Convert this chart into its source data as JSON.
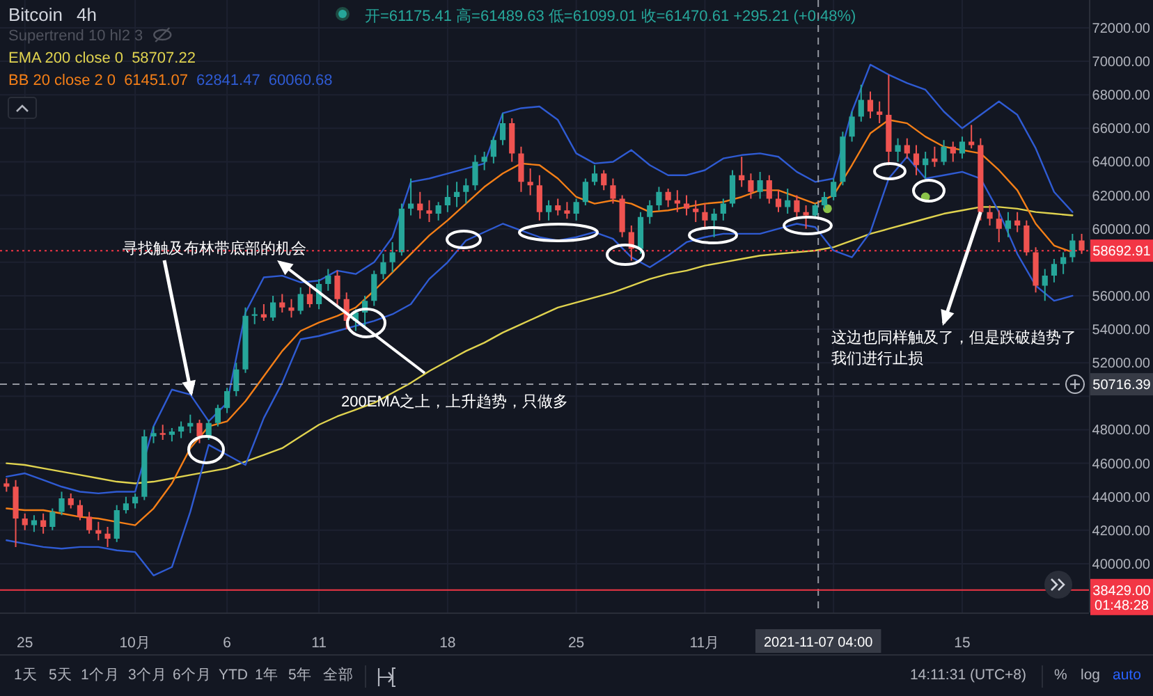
{
  "chart_data": {
    "type": "candlestick",
    "title": "Bitcoin",
    "subtitle": "4h",
    "x": [
      "2021-09-24T00:00",
      "2021-09-24T12:00",
      "2021-09-25T00:00",
      "2021-09-25T12:00",
      "2021-09-26T00:00",
      "2021-09-26T12:00",
      "2021-09-27T00:00",
      "2021-09-27T12:00",
      "2021-09-28T00:00",
      "2021-09-28T12:00",
      "2021-09-29T00:00",
      "2021-09-29T12:00",
      "2021-09-30T00:00",
      "2021-09-30T12:00",
      "2021-10-01T00:00",
      "2021-10-01T12:00",
      "2021-10-02T00:00",
      "2021-10-02T12:00",
      "2021-10-03T00:00",
      "2021-10-03T12:00",
      "2021-10-04T00:00",
      "2021-10-04T12:00",
      "2021-10-05T00:00",
      "2021-10-05T12:00",
      "2021-10-06T00:00",
      "2021-10-06T12:00",
      "2021-10-07T00:00",
      "2021-10-07T12:00",
      "2021-10-08T00:00",
      "2021-10-08T12:00",
      "2021-10-09T00:00",
      "2021-10-09T12:00",
      "2021-10-10T00:00",
      "2021-10-10T12:00",
      "2021-10-11T00:00",
      "2021-10-11T12:00",
      "2021-10-12T00:00",
      "2021-10-12T12:00",
      "2021-10-13T00:00",
      "2021-10-13T12:00",
      "2021-10-14T00:00",
      "2021-10-14T12:00",
      "2021-10-15T00:00",
      "2021-10-15T12:00",
      "2021-10-16T00:00",
      "2021-10-16T12:00",
      "2021-10-17T00:00",
      "2021-10-17T12:00",
      "2021-10-18T00:00",
      "2021-10-18T12:00",
      "2021-10-19T00:00",
      "2021-10-19T12:00",
      "2021-10-20T00:00",
      "2021-10-20T12:00",
      "2021-10-21T00:00",
      "2021-10-21T12:00",
      "2021-10-22T00:00",
      "2021-10-22T12:00",
      "2021-10-23T00:00",
      "2021-10-23T12:00",
      "2021-10-24T00:00",
      "2021-10-24T12:00",
      "2021-10-25T00:00",
      "2021-10-25T12:00",
      "2021-10-26T00:00",
      "2021-10-26T12:00",
      "2021-10-27T00:00",
      "2021-10-27T12:00",
      "2021-10-28T00:00",
      "2021-10-28T12:00",
      "2021-10-29T00:00",
      "2021-10-29T12:00",
      "2021-10-30T00:00",
      "2021-10-30T12:00",
      "2021-10-31T00:00",
      "2021-10-31T12:00",
      "2021-11-01T00:00",
      "2021-11-01T12:00",
      "2021-11-02T00:00",
      "2021-11-02T12:00",
      "2021-11-03T00:00",
      "2021-11-03T12:00",
      "2021-11-04T00:00",
      "2021-11-04T12:00",
      "2021-11-05T00:00",
      "2021-11-05T12:00",
      "2021-11-06T00:00",
      "2021-11-06T12:00",
      "2021-11-07T00:00",
      "2021-11-07T12:00",
      "2021-11-08T00:00",
      "2021-11-08T12:00",
      "2021-11-09T00:00",
      "2021-11-09T12:00",
      "2021-11-10T00:00",
      "2021-11-10T12:00",
      "2021-11-11T00:00",
      "2021-11-11T12:00",
      "2021-11-12T00:00",
      "2021-11-12T12:00",
      "2021-11-13T00:00",
      "2021-11-13T12:00",
      "2021-11-14T00:00",
      "2021-11-14T12:00",
      "2021-11-15T00:00",
      "2021-11-15T12:00",
      "2021-11-16T00:00",
      "2021-11-16T12:00",
      "2021-11-17T00:00",
      "2021-11-17T12:00",
      "2021-11-18T00:00",
      "2021-11-18T12:00",
      "2021-11-19T00:00",
      "2021-11-19T12:00",
      "2021-11-20T00:00",
      "2021-11-20T12:00",
      "2021-11-21T00:00",
      "2021-11-21T12:00"
    ],
    "ohlc": [
      [
        44800,
        45100,
        44300,
        44600
      ],
      [
        44600,
        45000,
        41000,
        42700
      ],
      [
        42700,
        43000,
        42000,
        42300
      ],
      [
        42300,
        42900,
        41900,
        42600
      ],
      [
        42600,
        43000,
        41800,
        42200
      ],
      [
        42200,
        43300,
        42000,
        43100
      ],
      [
        43100,
        44300,
        42900,
        43900
      ],
      [
        43900,
        44200,
        43300,
        43500
      ],
      [
        43500,
        43800,
        42600,
        42800
      ],
      [
        42800,
        43100,
        41800,
        42000
      ],
      [
        42000,
        42500,
        41400,
        41800
      ],
      [
        41800,
        42200,
        41000,
        41500
      ],
      [
        41500,
        43500,
        41300,
        43200
      ],
      [
        43200,
        44000,
        43000,
        43600
      ],
      [
        43600,
        44200,
        43300,
        44000
      ],
      [
        44000,
        48000,
        43800,
        47600
      ],
      [
        47600,
        48200,
        47200,
        47800
      ],
      [
        47800,
        48300,
        47400,
        47700
      ],
      [
        47700,
        48100,
        47300,
        47900
      ],
      [
        47900,
        48500,
        47500,
        48200
      ],
      [
        48200,
        48900,
        47800,
        48400
      ],
      [
        48400,
        48600,
        47200,
        47600
      ],
      [
        47600,
        48600,
        47400,
        48400
      ],
      [
        48400,
        49500,
        48200,
        49300
      ],
      [
        49300,
        50500,
        49000,
        50300
      ],
      [
        50300,
        52000,
        50000,
        51600
      ],
      [
        51600,
        55300,
        51400,
        54800
      ],
      [
        54800,
        55300,
        54300,
        54900
      ],
      [
        54900,
        55500,
        54500,
        54700
      ],
      [
        54700,
        56000,
        54500,
        55600
      ],
      [
        55600,
        56100,
        55000,
        55300
      ],
      [
        55300,
        55800,
        54700,
        55100
      ],
      [
        55100,
        56500,
        54900,
        56100
      ],
      [
        56100,
        56600,
        55300,
        55500
      ],
      [
        55500,
        57000,
        55200,
        56700
      ],
      [
        56700,
        57600,
        56300,
        57200
      ],
      [
        57200,
        57500,
        55400,
        55800
      ],
      [
        55800,
        56200,
        54000,
        54500
      ],
      [
        54500,
        55200,
        53900,
        55000
      ],
      [
        55000,
        56000,
        54200,
        55700
      ],
      [
        55700,
        57500,
        55400,
        57300
      ],
      [
        57300,
        58500,
        57000,
        58000
      ],
      [
        58000,
        59200,
        57400,
        58600
      ],
      [
        58600,
        61500,
        58400,
        61200
      ],
      [
        61200,
        63000,
        60800,
        61500
      ],
      [
        61500,
        62200,
        60600,
        61100
      ],
      [
        61100,
        61700,
        60400,
        60900
      ],
      [
        60900,
        61600,
        60500,
        61400
      ],
      [
        61400,
        62600,
        61000,
        61900
      ],
      [
        61900,
        62800,
        61300,
        62200
      ],
      [
        62200,
        63000,
        61500,
        62600
      ],
      [
        62600,
        64400,
        62300,
        64000
      ],
      [
        64000,
        64600,
        63500,
        64300
      ],
      [
        64300,
        65500,
        63900,
        65300
      ],
      [
        65300,
        66900,
        65000,
        66300
      ],
      [
        66300,
        66600,
        64000,
        64500
      ],
      [
        64500,
        64900,
        62200,
        62800
      ],
      [
        62800,
        63600,
        62000,
        62600
      ],
      [
        62600,
        63200,
        60500,
        61000
      ],
      [
        61000,
        61700,
        60500,
        61400
      ],
      [
        61400,
        61800,
        60800,
        61100
      ],
      [
        61100,
        61600,
        60600,
        60900
      ],
      [
        60900,
        61800,
        60500,
        61600
      ],
      [
        61600,
        63000,
        61400,
        62800
      ],
      [
        62800,
        63800,
        62600,
        63300
      ],
      [
        63300,
        63500,
        62300,
        62600
      ],
      [
        62600,
        63000,
        61500,
        61800
      ],
      [
        61800,
        62000,
        59500,
        59800
      ],
      [
        59800,
        60200,
        58100,
        58800
      ],
      [
        58800,
        61000,
        58500,
        60700
      ],
      [
        60700,
        61700,
        60300,
        61400
      ],
      [
        61400,
        62500,
        61100,
        62200
      ],
      [
        62200,
        62400,
        61300,
        61700
      ],
      [
        61700,
        62300,
        61000,
        61500
      ],
      [
        61500,
        62000,
        60800,
        61200
      ],
      [
        61200,
        61700,
        60400,
        61000
      ],
      [
        61000,
        61500,
        60000,
        60500
      ],
      [
        60500,
        61200,
        59500,
        60900
      ],
      [
        60900,
        61800,
        60500,
        61500
      ],
      [
        61500,
        63500,
        61300,
        63200
      ],
      [
        63200,
        64300,
        62500,
        62900
      ],
      [
        62900,
        63300,
        61800,
        62200
      ],
      [
        62200,
        63400,
        61800,
        62900
      ],
      [
        62900,
        63200,
        61500,
        61800
      ],
      [
        61800,
        62300,
        61000,
        61300
      ],
      [
        61300,
        62400,
        60900,
        61700
      ],
      [
        61700,
        62000,
        60600,
        61000
      ],
      [
        61000,
        61400,
        60000,
        60800
      ],
      [
        60800,
        61500,
        60600,
        61400
      ],
      [
        61400,
        62200,
        61200,
        61900
      ],
      [
        61900,
        63000,
        61700,
        62800
      ],
      [
        62800,
        65800,
        62600,
        65500
      ],
      [
        65500,
        67000,
        65200,
        66700
      ],
      [
        66700,
        68600,
        66400,
        67700
      ],
      [
        67700,
        68200,
        66600,
        67000
      ],
      [
        67000,
        67600,
        66300,
        66800
      ],
      [
        66800,
        69200,
        63800,
        64600
      ],
      [
        64600,
        65400,
        64000,
        65000
      ],
      [
        65000,
        65400,
        64200,
        64500
      ],
      [
        64500,
        65000,
        63200,
        63800
      ],
      [
        63800,
        64600,
        63000,
        64200
      ],
      [
        64200,
        64900,
        63700,
        64000
      ],
      [
        64000,
        65300,
        63800,
        64900
      ],
      [
        64900,
        65200,
        64000,
        64500
      ],
      [
        64500,
        65500,
        64200,
        65200
      ],
      [
        65200,
        66200,
        64800,
        65000
      ],
      [
        65000,
        65400,
        60500,
        61000
      ],
      [
        61000,
        61400,
        60200,
        60600
      ],
      [
        60600,
        61100,
        59200,
        60000
      ],
      [
        60000,
        61000,
        59500,
        60500
      ],
      [
        60500,
        61000,
        59800,
        60200
      ],
      [
        60200,
        60500,
        58400,
        58600
      ],
      [
        58600,
        58900,
        56200,
        56600
      ],
      [
        56600,
        57600,
        55700,
        57200
      ],
      [
        57200,
        58200,
        56800,
        57900
      ],
      [
        57900,
        58600,
        57300,
        58300
      ],
      [
        58300,
        59700,
        58000,
        59300
      ],
      [
        59300,
        59700,
        58500,
        58700
      ]
    ],
    "colors": [
      "#ef5350",
      "#ef5350",
      "#ef5350",
      "#26a69a",
      "#ef5350",
      "#26a69a",
      "#26a69a",
      "#ef5350",
      "#ef5350",
      "#ef5350",
      "#ef5350",
      "#ef5350",
      "#26a69a",
      "#26a69a",
      "#26a69a",
      "#26a69a",
      "#26a69a",
      "#ef5350",
      "#26a69a",
      "#26a69a",
      "#26a69a",
      "#ef5350",
      "#26a69a",
      "#26a69a",
      "#26a69a",
      "#26a69a",
      "#26a69a",
      "#26a69a",
      "#ef5350",
      "#26a69a",
      "#ef5350",
      "#ef5350",
      "#26a69a",
      "#ef5350",
      "#26a69a",
      "#26a69a",
      "#ef5350",
      "#ef5350",
      "#26a69a",
      "#26a69a",
      "#26a69a",
      "#26a69a",
      "#26a69a",
      "#26a69a",
      "#26a69a",
      "#ef5350",
      "#ef5350",
      "#26a69a",
      "#26a69a",
      "#26a69a",
      "#26a69a",
      "#26a69a",
      "#26a69a",
      "#26a69a",
      "#26a69a",
      "#ef5350",
      "#ef5350",
      "#ef5350",
      "#ef5350",
      "#26a69a",
      "#ef5350",
      "#ef5350",
      "#26a69a",
      "#26a69a",
      "#26a69a",
      "#ef5350",
      "#ef5350",
      "#ef5350",
      "#ef5350",
      "#26a69a",
      "#26a69a",
      "#26a69a",
      "#ef5350",
      "#ef5350",
      "#ef5350",
      "#ef5350",
      "#ef5350",
      "#26a69a",
      "#26a69a",
      "#26a69a",
      "#ef5350",
      "#ef5350",
      "#26a69a",
      "#ef5350",
      "#ef5350",
      "#26a69a",
      "#ef5350",
      "#ef5350",
      "#26a69a",
      "#26a69a",
      "#26a69a",
      "#26a69a",
      "#26a69a",
      "#26a69a",
      "#ef5350",
      "#ef5350",
      "#ef5350",
      "#26a69a",
      "#ef5350",
      "#ef5350",
      "#26a69a",
      "#ef5350",
      "#26a69a",
      "#ef5350",
      "#26a69a",
      "#ef5350",
      "#ef5350",
      "#ef5350",
      "#ef5350",
      "#26a69a",
      "#ef5350",
      "#ef5350",
      "#ef5350",
      "#26a69a",
      "#26a69a",
      "#26a69a",
      "#26a69a",
      "#ef5350"
    ],
    "series": [
      {
        "name": "EMA 200 close 0",
        "type": "line",
        "color": "#e0d34f",
        "x": [
          "2021-09-24",
          "2021-09-25",
          "2021-09-26",
          "2021-09-27",
          "2021-09-28",
          "2021-09-29",
          "2021-09-30",
          "2021-10-01",
          "2021-10-02",
          "2021-10-03",
          "2021-10-04",
          "2021-10-05",
          "2021-10-06",
          "2021-10-07",
          "2021-10-08",
          "2021-10-09",
          "2021-10-10",
          "2021-10-11",
          "2021-10-12",
          "2021-10-13",
          "2021-10-14",
          "2021-10-15",
          "2021-10-16",
          "2021-10-17",
          "2021-10-18",
          "2021-10-19",
          "2021-10-20",
          "2021-10-21",
          "2021-10-22",
          "2021-10-23",
          "2021-10-24",
          "2021-10-25",
          "2021-10-26",
          "2021-10-27",
          "2021-10-28",
          "2021-10-29",
          "2021-10-30",
          "2021-10-31",
          "2021-11-01",
          "2021-11-02",
          "2021-11-03",
          "2021-11-04",
          "2021-11-05",
          "2021-11-06",
          "2021-11-07",
          "2021-11-08",
          "2021-11-09",
          "2021-11-10",
          "2021-11-11",
          "2021-11-12",
          "2021-11-13",
          "2021-11-14",
          "2021-11-15",
          "2021-11-16",
          "2021-11-17",
          "2021-11-18",
          "2021-11-19",
          "2021-11-20",
          "2021-11-21"
        ],
        "values": [
          46000,
          45900,
          45700,
          45500,
          45300,
          45100,
          44900,
          44800,
          44900,
          45100,
          45300,
          45500,
          45700,
          46100,
          46500,
          46900,
          47600,
          48300,
          48800,
          49200,
          49600,
          50200,
          50800,
          51500,
          52100,
          52700,
          53200,
          53800,
          54300,
          54800,
          55300,
          55600,
          55900,
          56200,
          56600,
          57000,
          57300,
          57500,
          57800,
          58000,
          58200,
          58400,
          58500,
          58600,
          58700,
          58900,
          59300,
          59700,
          60000,
          60300,
          60600,
          60900,
          61100,
          61300,
          61300,
          61200,
          61000,
          60900,
          60800
        ]
      },
      {
        "name": "BB 20 close 2 0",
        "type": "line",
        "color": "#f57f17",
        "x": [
          "2021-09-24",
          "2021-09-25",
          "2021-09-26",
          "2021-09-27",
          "2021-09-28",
          "2021-09-29",
          "2021-09-30",
          "2021-10-01",
          "2021-10-02",
          "2021-10-03",
          "2021-10-04",
          "2021-10-05",
          "2021-10-06",
          "2021-10-07",
          "2021-10-08",
          "2021-10-09",
          "2021-10-10",
          "2021-10-11",
          "2021-10-12",
          "2021-10-13",
          "2021-10-14",
          "2021-10-15",
          "2021-10-16",
          "2021-10-17",
          "2021-10-18",
          "2021-10-19",
          "2021-10-20",
          "2021-10-21",
          "2021-10-22",
          "2021-10-23",
          "2021-10-24",
          "2021-10-25",
          "2021-10-26",
          "2021-10-27",
          "2021-10-28",
          "2021-10-29",
          "2021-10-30",
          "2021-10-31",
          "2021-11-01",
          "2021-11-02",
          "2021-11-03",
          "2021-11-04",
          "2021-11-05",
          "2021-11-06",
          "2021-11-07",
          "2021-11-08",
          "2021-11-09",
          "2021-11-10",
          "2021-11-11",
          "2021-11-12",
          "2021-11-13",
          "2021-11-14",
          "2021-11-15",
          "2021-11-16",
          "2021-11-17",
          "2021-11-18",
          "2021-11-19",
          "2021-11-20",
          "2021-11-21"
        ],
        "values": [
          43300,
          43200,
          43200,
          43000,
          42800,
          42700,
          42500,
          42300,
          43300,
          44800,
          46900,
          48200,
          48500,
          49700,
          51200,
          52700,
          53900,
          54400,
          54800,
          55300,
          56300,
          57400,
          58500,
          59600,
          60500,
          61500,
          62500,
          63300,
          63900,
          63800,
          63000,
          61900,
          61500,
          61700,
          61500,
          61000,
          61100,
          61300,
          61500,
          61600,
          61900,
          62300,
          62300,
          61900,
          61500,
          62000,
          63800,
          65700,
          66500,
          66300,
          65500,
          64900,
          64700,
          64500,
          63500,
          62300,
          60300,
          59000,
          58600
        ]
      },
      {
        "type": "line",
        "color": "#2f5bd3",
        "x": [
          "2021-09-24",
          "2021-09-25",
          "2021-09-26",
          "2021-09-27",
          "2021-09-28",
          "2021-09-29",
          "2021-09-30",
          "2021-10-01",
          "2021-10-02",
          "2021-10-03",
          "2021-10-04",
          "2021-10-05",
          "2021-10-06",
          "2021-10-07",
          "2021-10-08",
          "2021-10-09",
          "2021-10-10",
          "2021-10-11",
          "2021-10-12",
          "2021-10-13",
          "2021-10-14",
          "2021-10-15",
          "2021-10-16",
          "2021-10-17",
          "2021-10-18",
          "2021-10-19",
          "2021-10-20",
          "2021-10-21",
          "2021-10-22",
          "2021-10-23",
          "2021-10-24",
          "2021-10-25",
          "2021-10-26",
          "2021-10-27",
          "2021-10-28",
          "2021-10-29",
          "2021-10-30",
          "2021-10-31",
          "2021-11-01",
          "2021-11-02",
          "2021-11-03",
          "2021-11-04",
          "2021-11-05",
          "2021-11-06",
          "2021-11-07",
          "2021-11-08",
          "2021-11-09",
          "2021-11-10",
          "2021-11-11",
          "2021-11-12",
          "2021-11-13",
          "2021-11-14",
          "2021-11-15",
          "2021-11-16",
          "2021-11-17",
          "2021-11-18",
          "2021-11-19",
          "2021-11-20",
          "2021-11-21"
        ],
        "values": [
          45200,
          45400,
          45000,
          44600,
          44300,
          44200,
          44300,
          44300,
          48200,
          50400,
          50100,
          48500,
          49600,
          55000,
          57100,
          57200,
          56800,
          56900,
          57500,
          57300,
          58000,
          59500,
          62800,
          63000,
          63300,
          63600,
          63900,
          66900,
          67200,
          67300,
          66500,
          64500,
          63900,
          64000,
          64700,
          63800,
          63200,
          63200,
          63500,
          64200,
          64400,
          64500,
          64300,
          63400,
          62800,
          63000,
          67000,
          69800,
          69200,
          68700,
          68300,
          67000,
          66000,
          66800,
          67600,
          66800,
          64800,
          62200,
          61000
        ]
      },
      {
        "type": "line",
        "color": "#2f5bd3",
        "x": [
          "2021-09-24",
          "2021-09-25",
          "2021-09-26",
          "2021-09-27",
          "2021-09-28",
          "2021-09-29",
          "2021-09-30",
          "2021-10-01",
          "2021-10-02",
          "2021-10-03",
          "2021-10-04",
          "2021-10-05",
          "2021-10-06",
          "2021-10-07",
          "2021-10-08",
          "2021-10-09",
          "2021-10-10",
          "2021-10-11",
          "2021-10-12",
          "2021-10-13",
          "2021-10-14",
          "2021-10-15",
          "2021-10-16",
          "2021-10-17",
          "2021-10-18",
          "2021-10-19",
          "2021-10-20",
          "2021-10-21",
          "2021-10-22",
          "2021-10-23",
          "2021-10-24",
          "2021-10-25",
          "2021-10-26",
          "2021-10-27",
          "2021-10-28",
          "2021-10-29",
          "2021-10-30",
          "2021-10-31",
          "2021-11-01",
          "2021-11-02",
          "2021-11-03",
          "2021-11-04",
          "2021-11-05",
          "2021-11-06",
          "2021-11-07",
          "2021-11-08",
          "2021-11-09",
          "2021-11-10",
          "2021-11-11",
          "2021-11-12",
          "2021-11-13",
          "2021-11-14",
          "2021-11-15",
          "2021-11-16",
          "2021-11-17",
          "2021-11-18",
          "2021-11-19",
          "2021-11-20",
          "2021-11-21"
        ],
        "values": [
          41400,
          41200,
          41000,
          40900,
          41000,
          41000,
          40800,
          40700,
          39300,
          39800,
          43100,
          47100,
          46500,
          45900,
          48700,
          50800,
          53400,
          53600,
          53900,
          54200,
          54500,
          54900,
          55500,
          57000,
          58000,
          59300,
          59800,
          60300,
          59900,
          59500,
          59300,
          59500,
          59800,
          59400,
          58300,
          57700,
          58400,
          59200,
          59500,
          59700,
          59700,
          59700,
          60000,
          60300,
          60100,
          58700,
          58300,
          59800,
          63000,
          64300,
          63000,
          63200,
          63400,
          63000,
          61000,
          58500,
          56600,
          55700,
          56000
        ]
      },
      {
        "type": "scatter",
        "color": "#8bc34a",
        "marker": "circle",
        "x": [
          "2021-11-07T16:00",
          "2021-11-13T00:00"
        ],
        "values": [
          61200,
          61900
        ]
      }
    ],
    "xlim": [
      "2021-09-23T15:30",
      "2021-11-21T21:30"
    ],
    "xticks": [
      {
        "value": "2021-09-25",
        "label": "25"
      },
      {
        "value": "2021-10-01",
        "label": "10月"
      },
      {
        "value": "2021-10-06",
        "label": "6"
      },
      {
        "value": "2021-10-11",
        "label": "11"
      },
      {
        "value": "2021-10-18",
        "label": "18"
      },
      {
        "value": "2021-10-25",
        "label": "25"
      },
      {
        "value": "2021-11-01",
        "label": "11月"
      },
      {
        "value": "2021-11-08",
        "label": null
      },
      {
        "value": "2021-11-15",
        "label": "15"
      }
    ],
    "ylim": [
      37090,
      73660
    ],
    "yticks": [
      {
        "value": 40000,
        "label": "40000.00"
      },
      {
        "value": 42000,
        "label": "42000.00"
      },
      {
        "value": 44000,
        "label": "44000.00"
      },
      {
        "value": 46000,
        "label": "46000.00"
      },
      {
        "value": 48000,
        "label": "48000.00"
      },
      {
        "value": 50000,
        "label": null
      },
      {
        "value": 52000,
        "label": "52000.00"
      },
      {
        "value": 54000,
        "label": "54000.00"
      },
      {
        "value": 56000,
        "label": "56000.00"
      },
      {
        "value": 58000,
        "label": null
      },
      {
        "value": 60000,
        "label": "60000.00"
      },
      {
        "value": 62000,
        "label": "62000.00"
      },
      {
        "value": 64000,
        "label": "64000.00"
      },
      {
        "value": 66000,
        "label": "66000.00"
      },
      {
        "value": 68000,
        "label": "68000.00"
      },
      {
        "value": 70000,
        "label": "70000.00"
      },
      {
        "value": 72000,
        "label": "72000.00"
      }
    ],
    "ref_lines": [
      {
        "axis": "x",
        "value": "2021-11-07T04:00",
        "line_style": "dashed",
        "color": "#9598a1"
      },
      {
        "axis": "y",
        "value": 50716.39,
        "line_style": "dashed",
        "color": "#9598a1"
      },
      {
        "axis": "y",
        "value": 58692.91,
        "line_style": "dotted",
        "color": "#f23645"
      },
      {
        "axis": "y",
        "value": 38429,
        "line_style": "solid",
        "color": "#f23645"
      }
    ],
    "annotations": [
      "开=61175.41 高=61489.63 低=61099.01 收=61470.61 +295.21 (+0.48%)",
      "Supertrend 10 hl2 3",
      "58707.22",
      "61451.07",
      "62841.47",
      "60060.68",
      {
        "text": "寻找触及布林带底部的机会",
        "x": "2021-10-04T02:00",
        "y": 50000
      },
      "200EMA之上，上升趋势，只做多",
      {
        "text": "这边也同样触及了，但是跌破趋势了",
        "x": "2021-11-16T00:00",
        "y": 61000
      },
      "我们进行止损",
      "01:48:28",
      "1天",
      "5天",
      "1个月",
      "3个月",
      "6个月",
      "YTD",
      "1年",
      "5年",
      "全部",
      "14:11:31 (UTC+8)",
      "%",
      "log",
      "auto",
      "2021-11-07 04:00",
      "50716.39",
      "58692.91",
      "38429.00"
    ],
    "grid": true,
    "legend": "top left"
  }
}
